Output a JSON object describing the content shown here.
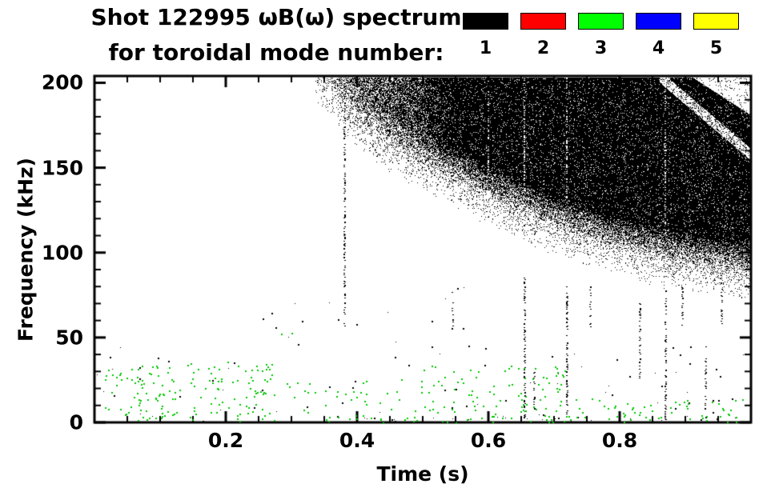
{
  "title": {
    "line1": "Shot 122995 ωB(ω) spectrum",
    "line2": "for toroidal mode number:"
  },
  "colors": {
    "background": "#ffffff",
    "frame": "#000000",
    "text": "#000000"
  },
  "chart_data": {
    "type": "heatmap",
    "variant": "magnetics-mode-spectrogram",
    "title": "Shot 122995 ωB(ω) spectrum",
    "subtitle": "for toroidal mode number:",
    "xlabel": "Time (s)",
    "ylabel": "Frequency (kHz)",
    "xlim": [
      0.0,
      1.0
    ],
    "ylim": [
      0,
      204
    ],
    "grid": false,
    "legend_position": "top-right",
    "legend": [
      {
        "label": "1",
        "color": "#000000"
      },
      {
        "label": "2",
        "color": "#ff0000"
      },
      {
        "label": "3",
        "color": "#00ff00"
      },
      {
        "label": "4",
        "color": "#0000ff"
      },
      {
        "label": "5",
        "color": "#ffff00"
      }
    ],
    "xticks": {
      "values": [
        0.2,
        0.4,
        0.6,
        0.8
      ],
      "labels": [
        "0.2",
        "0.4",
        "0.6",
        "0.8"
      ],
      "minor_step": 0.05
    },
    "yticks": {
      "values": [
        0,
        50,
        100,
        150,
        200
      ],
      "labels": [
        "0",
        "50",
        "100",
        "150",
        "200"
      ],
      "minor_step": 10
    },
    "n1_band": {
      "mode": 1,
      "color": "#000000",
      "description": "Dense broadband n=1 spectrum appearing near t=0.35 s; lower edge sweeps down from ~200 kHz to ~87 kHz by end of shot; near-solid black with white speckle",
      "t_start": 0.335,
      "lower_edge": {
        "t": [
          0.33,
          0.36,
          0.4,
          0.45,
          0.5,
          0.55,
          0.6,
          0.65,
          0.7,
          0.75,
          0.8,
          0.85,
          0.9,
          0.95,
          1.0
        ],
        "f_khz": [
          204,
          196,
          176,
          162,
          151,
          141,
          131,
          122,
          114,
          107,
          101,
          96,
          92,
          89,
          87
        ]
      },
      "upper_edge_khz": 204,
      "edge_fuzz_khz": 16
    },
    "intra_band_white_lanes": {
      "t": [
        0.6,
        0.655,
        0.72,
        0.87
      ],
      "density": 0.3
    },
    "streaks": [
      {
        "t": 0.38,
        "f0": 55,
        "f1": 200,
        "density": 0.3
      },
      {
        "t": 0.545,
        "f0": 55,
        "f1": 78,
        "density": 0.25
      },
      {
        "t": 0.655,
        "f0": 2,
        "f1": 86,
        "density": 0.45
      },
      {
        "t": 0.67,
        "f0": 2,
        "f1": 30,
        "density": 0.3
      },
      {
        "t": 0.72,
        "f0": 2,
        "f1": 80,
        "density": 0.4
      },
      {
        "t": 0.755,
        "f0": 55,
        "f1": 80,
        "density": 0.28
      },
      {
        "t": 0.83,
        "f0": 25,
        "f1": 70,
        "density": 0.38
      },
      {
        "t": 0.87,
        "f0": 2,
        "f1": 78,
        "density": 0.38
      },
      {
        "t": 0.895,
        "f0": 55,
        "f1": 80,
        "density": 0.3
      },
      {
        "t": 0.93,
        "f0": 2,
        "f1": 45,
        "density": 0.32
      },
      {
        "t": 0.955,
        "f0": 55,
        "f1": 85,
        "density": 0.28
      }
    ],
    "mode3_scatter": {
      "mode": 3,
      "color": "#00c800",
      "description": "Sparse low-frequency n=3 activity, mostly below 36 kHz",
      "regions": [
        {
          "t0": 0.01,
          "t1": 0.28,
          "f0": 1,
          "f1": 36,
          "n": 160
        },
        {
          "t0": 0.28,
          "t1": 0.5,
          "f0": 1,
          "f1": 26,
          "n": 40
        },
        {
          "t0": 0.5,
          "t1": 0.72,
          "f0": 1,
          "f1": 34,
          "n": 90
        },
        {
          "t0": 0.72,
          "t1": 0.99,
          "f0": 1,
          "f1": 14,
          "n": 45
        },
        {
          "t0": 0.35,
          "t1": 1.0,
          "f0": 0,
          "f1": 4,
          "n": 40
        },
        {
          "t0": 0.25,
          "t1": 0.3,
          "f0": 50,
          "f1": 60,
          "n": 2
        }
      ]
    },
    "speckle_dots": {
      "color": "#000000",
      "regions": [
        {
          "t0": 0.0,
          "t1": 1.0,
          "f0": 0,
          "f1": 45,
          "n": 80
        },
        {
          "t0": 0.25,
          "t1": 0.6,
          "f0": 45,
          "f1": 80,
          "n": 18
        },
        {
          "t0": 0.35,
          "t1": 1.0,
          "f0": 0,
          "f1": 4,
          "n": 30
        }
      ]
    }
  }
}
